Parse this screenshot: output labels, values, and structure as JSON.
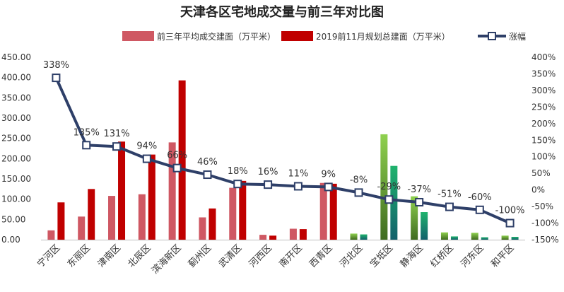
{
  "chart_data": {
    "type": "bar",
    "title": "天津各区宅地成交量与前三年对比图",
    "categories": [
      "宁河区",
      "东丽区",
      "津南区",
      "北辰区",
      "滨海新区",
      "蓟州区",
      "武清区",
      "河西区",
      "南开区",
      "西青区",
      "河北区",
      "宝坻区",
      "静海区",
      "红桥区",
      "河东区",
      "和平区"
    ],
    "series": [
      {
        "name": "前三年平均成交建面（万平米）",
        "type": "bar",
        "axis": "left",
        "values": [
          23,
          57,
          108,
          112,
          240,
          55,
          128,
          12,
          27,
          140,
          15,
          260,
          107,
          18,
          17,
          10
        ]
      },
      {
        "name": "2019前11月规划总建面（万平米）",
        "type": "bar",
        "axis": "left",
        "values": [
          92,
          125,
          242,
          210,
          393,
          77,
          145,
          10,
          26,
          138,
          13,
          182,
          68,
          8,
          6,
          7
        ]
      },
      {
        "name": "涨幅",
        "type": "line",
        "axis": "right",
        "values": [
          338,
          135,
          131,
          94,
          66,
          46,
          18,
          16,
          11,
          9,
          -8,
          -29,
          -37,
          -51,
          -60,
          -100
        ]
      }
    ],
    "rate_labels": [
      "338%",
      "135%",
      "131%",
      "94%",
      "66%",
      "46%",
      "18%",
      "16%",
      "11%",
      "9%",
      "-8%",
      "-29%",
      "-37%",
      "-51%",
      "-60%",
      "-100%"
    ],
    "y_left": {
      "min": 0,
      "max": 450,
      "ticks": [
        "0.00",
        "50.00",
        "100.00",
        "150.00",
        "200.00",
        "250.00",
        "300.00",
        "350.00",
        "400.00",
        "450.00"
      ]
    },
    "y_right": {
      "min": -150,
      "max": 400,
      "ticks": [
        "-150%",
        "-100%",
        "-50%",
        "0%",
        "50%",
        "100%",
        "150%",
        "200%",
        "250%",
        "300%",
        "350%",
        "400%"
      ]
    },
    "grid": false,
    "legend_position": "top",
    "colors": {
      "avg_bar": "#cf5863",
      "plan_bar": "#c00000",
      "line": "#2e3f68",
      "green_avg": "#8fd14f",
      "green_plan": "#1fb36d"
    }
  }
}
